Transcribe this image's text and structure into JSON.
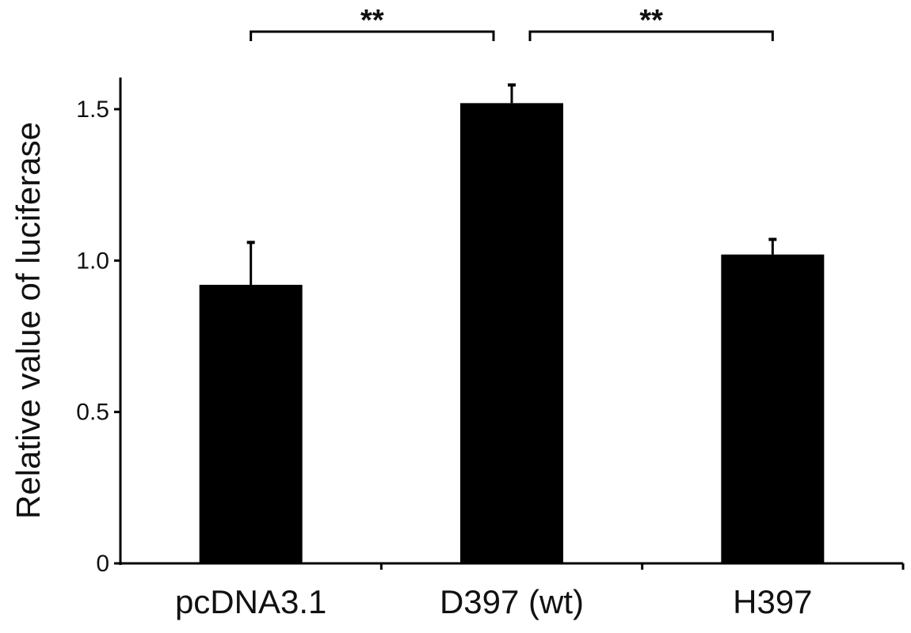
{
  "chart_data": {
    "type": "bar",
    "categories": [
      "pcDNA3.1",
      "D397 (wt)",
      "H397"
    ],
    "values": [
      0.92,
      1.52,
      1.02
    ],
    "error_bars": [
      0.14,
      0.06,
      0.05
    ],
    "ylabel": "Relative value of luciferase",
    "ylim": [
      0,
      1.6
    ],
    "yticks": [
      0,
      0.5,
      1.0,
      1.5
    ],
    "ytick_labels": [
      "0",
      "0.5",
      "1.0",
      "1.5"
    ],
    "grid": false,
    "bar_color": "#000000",
    "significance": [
      {
        "from": 0,
        "to": 1,
        "label": "**"
      },
      {
        "from": 1,
        "to": 2,
        "label": "**"
      }
    ]
  }
}
